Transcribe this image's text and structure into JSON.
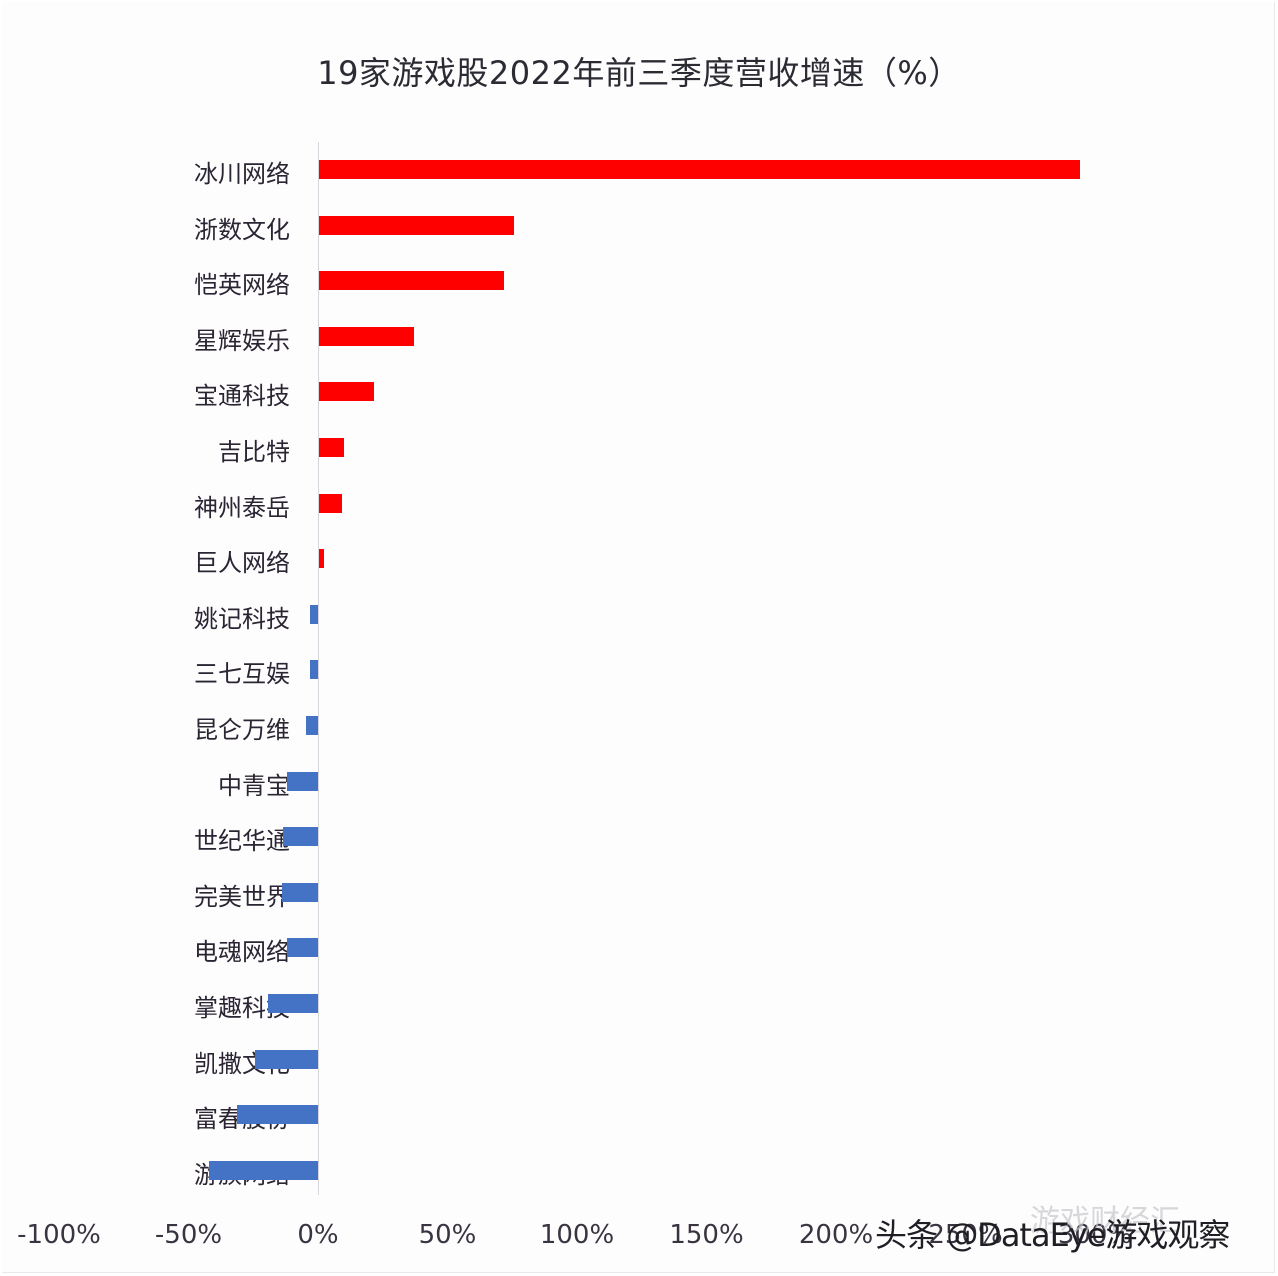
{
  "title": "19家游戏股2022年前三季度营收增速（%）",
  "colors": {
    "positive": "#ff0000",
    "negative": "#4472c4",
    "axis": "#d6d6dc"
  },
  "watermark": {
    "primary": "头条 @DataEye游戏观察",
    "secondary": "游戏财经汇"
  },
  "axis": {
    "ticks": [
      "-100%",
      "-50%",
      "0%",
      "50%",
      "100%",
      "150%",
      "200%",
      "250%",
      "300%"
    ]
  },
  "chart_data": {
    "type": "bar",
    "orientation": "horizontal",
    "title": "19家游戏股2022年前三季度营收增速（%）",
    "xlabel": "",
    "ylabel": "",
    "xlim": [
      -100,
      300
    ],
    "x_ticks": [
      -100,
      -50,
      0,
      50,
      100,
      150,
      200,
      250,
      300
    ],
    "x_tick_labels": [
      "-100%",
      "-50%",
      "0%",
      "50%",
      "100%",
      "150%",
      "200%",
      "250%",
      "300%"
    ],
    "grid": false,
    "legend": null,
    "categories": [
      "冰川网络",
      "浙数文化",
      "恺英网络",
      "星辉娱乐",
      "宝通科技",
      "吉比特",
      "神州泰岳",
      "巨人网络",
      "姚记科技",
      "三七互娱",
      "昆仑万维",
      "中青宝",
      "世纪华通",
      "完美世界",
      "电魂网络",
      "掌趣科技",
      "凯撒文化",
      "富春股份",
      "游族网络"
    ],
    "values": [
      293.8,
      75.3,
      71.4,
      36.7,
      21.2,
      9.7,
      8.9,
      1.9,
      -3.1,
      -3.1,
      -4.6,
      -12.0,
      -13.5,
      -14.0,
      -12.0,
      -19.3,
      -24.3,
      -31.3,
      -42.1
    ],
    "series": [
      {
        "name": "营收增速",
        "values": [
          293.8,
          75.3,
          71.4,
          36.7,
          21.2,
          9.7,
          8.9,
          1.9,
          -3.1,
          -3.1,
          -4.6,
          -12.0,
          -13.5,
          -14.0,
          -12.0,
          -19.3,
          -24.3,
          -31.3,
          -42.1
        ]
      }
    ],
    "annotations": [
      "头条 @DataEye游戏观察",
      "游戏财经汇"
    ]
  }
}
